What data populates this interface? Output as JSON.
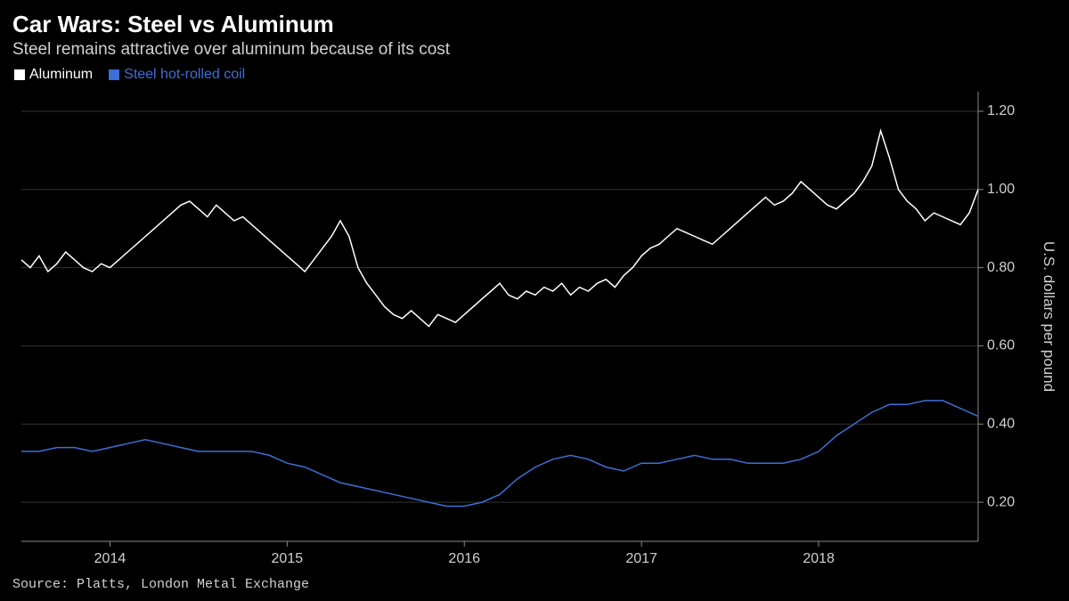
{
  "title": "Car Wars: Steel vs Aluminum",
  "subtitle": "Steel remains attractive over aluminum because of its cost",
  "source": "Source: Platts, London Metal Exchange",
  "legend": [
    {
      "label": "Aluminum",
      "color": "#ffffff"
    },
    {
      "label": "Steel hot-rolled coil",
      "color": "#3b6fd6"
    }
  ],
  "chart": {
    "type": "line",
    "background_color": "#000000",
    "grid_color": "#333333",
    "axis_color": "#888888",
    "text_color": "#d0d0d0",
    "y_axis": {
      "title": "U.S. dollars per pound",
      "ticks": [
        0.2,
        0.4,
        0.6,
        0.8,
        1.0,
        1.2
      ],
      "min": 0.1,
      "max": 1.25,
      "side": "right",
      "label_fontsize": 16,
      "title_fontsize": 17
    },
    "x_axis": {
      "min": 2013.5,
      "max": 2018.9,
      "ticks": [
        2014,
        2015,
        2016,
        2017,
        2018
      ],
      "label_fontsize": 16
    },
    "line_width": 1.5,
    "series": [
      {
        "name": "Aluminum",
        "color": "#ffffff",
        "x": [
          2013.5,
          2013.55,
          2013.6,
          2013.65,
          2013.7,
          2013.75,
          2013.8,
          2013.85,
          2013.9,
          2013.95,
          2014.0,
          2014.05,
          2014.1,
          2014.15,
          2014.2,
          2014.25,
          2014.3,
          2014.35,
          2014.4,
          2014.45,
          2014.5,
          2014.55,
          2014.6,
          2014.65,
          2014.7,
          2014.75,
          2014.8,
          2014.85,
          2014.9,
          2014.95,
          2015.0,
          2015.05,
          2015.1,
          2015.15,
          2015.2,
          2015.25,
          2015.3,
          2015.35,
          2015.4,
          2015.45,
          2015.5,
          2015.55,
          2015.6,
          2015.65,
          2015.7,
          2015.75,
          2015.8,
          2015.85,
          2015.9,
          2015.95,
          2016.0,
          2016.05,
          2016.1,
          2016.15,
          2016.2,
          2016.25,
          2016.3,
          2016.35,
          2016.4,
          2016.45,
          2016.5,
          2016.55,
          2016.6,
          2016.65,
          2016.7,
          2016.75,
          2016.8,
          2016.85,
          2016.9,
          2016.95,
          2017.0,
          2017.05,
          2017.1,
          2017.15,
          2017.2,
          2017.25,
          2017.3,
          2017.35,
          2017.4,
          2017.45,
          2017.5,
          2017.55,
          2017.6,
          2017.65,
          2017.7,
          2017.75,
          2017.8,
          2017.85,
          2017.9,
          2017.95,
          2018.0,
          2018.05,
          2018.1,
          2018.15,
          2018.2,
          2018.25,
          2018.3,
          2018.35,
          2018.4,
          2018.45,
          2018.5,
          2018.55,
          2018.6,
          2018.65,
          2018.7,
          2018.75,
          2018.8,
          2018.85,
          2018.9
        ],
        "y": [
          0.82,
          0.8,
          0.83,
          0.79,
          0.81,
          0.84,
          0.82,
          0.8,
          0.79,
          0.81,
          0.8,
          0.82,
          0.84,
          0.86,
          0.88,
          0.9,
          0.92,
          0.94,
          0.96,
          0.97,
          0.95,
          0.93,
          0.96,
          0.94,
          0.92,
          0.93,
          0.91,
          0.89,
          0.87,
          0.85,
          0.83,
          0.81,
          0.79,
          0.82,
          0.85,
          0.88,
          0.92,
          0.88,
          0.8,
          0.76,
          0.73,
          0.7,
          0.68,
          0.67,
          0.69,
          0.67,
          0.65,
          0.68,
          0.67,
          0.66,
          0.68,
          0.7,
          0.72,
          0.74,
          0.76,
          0.73,
          0.72,
          0.74,
          0.73,
          0.75,
          0.74,
          0.76,
          0.73,
          0.75,
          0.74,
          0.76,
          0.77,
          0.75,
          0.78,
          0.8,
          0.83,
          0.85,
          0.86,
          0.88,
          0.9,
          0.89,
          0.88,
          0.87,
          0.86,
          0.88,
          0.9,
          0.92,
          0.94,
          0.96,
          0.98,
          0.96,
          0.97,
          0.99,
          1.02,
          1.0,
          0.98,
          0.96,
          0.95,
          0.97,
          0.99,
          1.02,
          1.06,
          1.15,
          1.08,
          1.0,
          0.97,
          0.95,
          0.92,
          0.94,
          0.93,
          0.92,
          0.91,
          0.94,
          1.0
        ]
      },
      {
        "name": "Steel hot-rolled coil",
        "color": "#3b6fd6",
        "x": [
          2013.5,
          2013.6,
          2013.7,
          2013.8,
          2013.9,
          2014.0,
          2014.1,
          2014.2,
          2014.3,
          2014.4,
          2014.5,
          2014.6,
          2014.7,
          2014.8,
          2014.9,
          2015.0,
          2015.1,
          2015.2,
          2015.3,
          2015.4,
          2015.5,
          2015.6,
          2015.7,
          2015.8,
          2015.9,
          2016.0,
          2016.1,
          2016.2,
          2016.3,
          2016.4,
          2016.5,
          2016.6,
          2016.7,
          2016.8,
          2016.9,
          2017.0,
          2017.1,
          2017.2,
          2017.3,
          2017.4,
          2017.5,
          2017.6,
          2017.7,
          2017.8,
          2017.9,
          2018.0,
          2018.1,
          2018.2,
          2018.3,
          2018.4,
          2018.5,
          2018.6,
          2018.7,
          2018.8,
          2018.9
        ],
        "y": [
          0.33,
          0.33,
          0.34,
          0.34,
          0.33,
          0.34,
          0.35,
          0.36,
          0.35,
          0.34,
          0.33,
          0.33,
          0.33,
          0.33,
          0.32,
          0.3,
          0.29,
          0.27,
          0.25,
          0.24,
          0.23,
          0.22,
          0.21,
          0.2,
          0.19,
          0.19,
          0.2,
          0.22,
          0.26,
          0.29,
          0.31,
          0.32,
          0.31,
          0.29,
          0.28,
          0.3,
          0.3,
          0.31,
          0.32,
          0.31,
          0.31,
          0.3,
          0.3,
          0.3,
          0.31,
          0.33,
          0.37,
          0.4,
          0.43,
          0.45,
          0.45,
          0.46,
          0.46,
          0.44,
          0.42
        ]
      }
    ]
  }
}
